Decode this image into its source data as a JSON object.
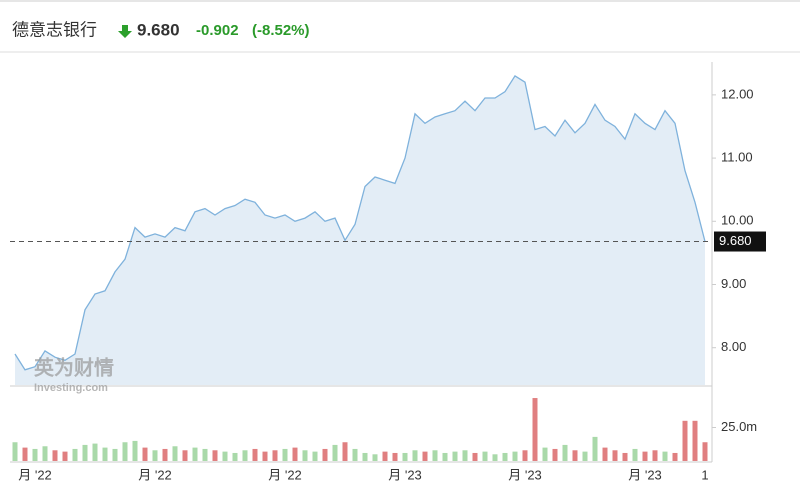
{
  "chart_data": {
    "type": "area",
    "title": "德意志银行",
    "last_price": {
      "value": 9.68,
      "label": "9.680"
    },
    "change": -0.902,
    "change_pct": "(-8.52%)",
    "watermark": [
      "英为财情",
      "Investing.com"
    ],
    "categories": [
      null,
      null,
      "月 '22",
      null,
      null,
      null,
      null,
      null,
      null,
      null,
      null,
      null,
      null,
      null,
      "月 '22",
      null,
      null,
      null,
      null,
      null,
      null,
      null,
      null,
      null,
      null,
      null,
      null,
      "月 '22",
      null,
      null,
      null,
      null,
      null,
      null,
      null,
      null,
      null,
      null,
      null,
      "月 '23",
      null,
      null,
      null,
      null,
      null,
      null,
      null,
      null,
      null,
      null,
      null,
      "月 '23",
      null,
      null,
      null,
      null,
      null,
      null,
      null,
      null,
      null,
      null,
      null,
      "月 '23",
      null,
      null,
      null,
      null,
      null,
      "1"
    ],
    "values": [
      7.9,
      7.65,
      7.7,
      7.95,
      7.85,
      7.8,
      7.9,
      8.6,
      8.85,
      8.9,
      9.2,
      9.4,
      9.9,
      9.75,
      9.8,
      9.75,
      9.9,
      9.85,
      10.15,
      10.2,
      10.1,
      10.2,
      10.25,
      10.35,
      10.3,
      10.1,
      10.05,
      10.1,
      10.0,
      10.05,
      10.15,
      10.0,
      10.05,
      9.7,
      9.95,
      10.55,
      10.7,
      10.65,
      10.6,
      11.0,
      11.7,
      11.55,
      11.65,
      11.7,
      11.75,
      11.9,
      11.75,
      11.95,
      11.95,
      12.05,
      12.3,
      12.2,
      11.45,
      11.5,
      11.35,
      11.6,
      11.4,
      11.55,
      11.85,
      11.6,
      11.5,
      11.3,
      11.7,
      11.55,
      11.45,
      11.75,
      11.55,
      10.8,
      10.3,
      9.68
    ],
    "color": "#7fb2dc",
    "fill": "#e3edf6",
    "ylim": [
      7.41,
      12.52
    ],
    "yticks": [
      {
        "value": 8,
        "label": "8.00"
      },
      {
        "value": 9,
        "label": "9.00"
      },
      {
        "value": 10,
        "label": "10.00"
      },
      {
        "value": 11,
        "label": "11.00"
      },
      {
        "value": 12,
        "label": "12.00"
      }
    ],
    "volume": {
      "values": [
        14,
        10,
        9,
        11,
        8,
        7,
        9,
        12,
        13,
        10,
        9,
        14,
        15,
        10,
        8,
        9,
        11,
        8,
        10,
        9,
        8,
        7,
        6,
        8,
        9,
        7,
        8,
        9,
        10,
        8,
        7,
        9,
        12,
        14,
        9,
        6,
        5,
        7,
        6,
        6,
        8,
        7,
        8,
        6,
        7,
        8,
        6,
        7,
        5,
        6,
        7,
        8,
        47,
        10,
        9,
        12,
        8,
        7,
        18,
        10,
        8,
        6,
        9,
        7,
        8,
        7,
        6,
        30,
        30,
        14
      ],
      "ylim": [
        0,
        53
      ],
      "yticks": [
        {
          "value": 25,
          "label": "25.0m"
        }
      ],
      "up_color": "#a9d9a9",
      "down_color": "#e07f80"
    }
  }
}
